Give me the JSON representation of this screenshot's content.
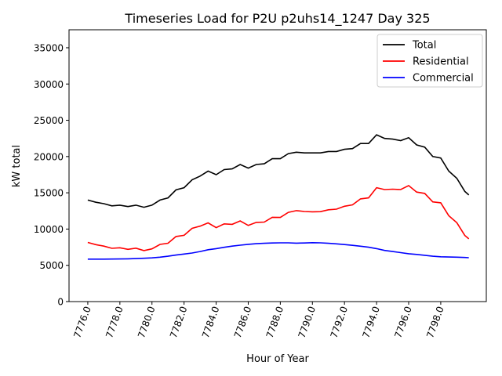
{
  "chart_data": {
    "type": "line",
    "title": "Timeseries Load for P2U p2uhs14_1247  Day 325",
    "xlabel": "Hour of Year",
    "ylabel": "kW total",
    "xlim": [
      7774.83,
      7800.84
    ],
    "ylim": [
      0,
      37480
    ],
    "xticks": [
      7776,
      7778,
      7780,
      7782,
      7784,
      7786,
      7788,
      7790,
      7792,
      7794,
      7796,
      7798
    ],
    "xtick_labels": [
      "7776.0",
      "7778.0",
      "7780.0",
      "7782.0",
      "7784.0",
      "7786.0",
      "7788.0",
      "7790.0",
      "7792.0",
      "7794.0",
      "7796.0",
      "7798.0"
    ],
    "yticks": [
      0,
      5000,
      10000,
      15000,
      20000,
      25000,
      30000,
      35000
    ],
    "ytick_labels": [
      "0",
      "5000",
      "10000",
      "15000",
      "20000",
      "25000",
      "30000",
      "35000"
    ],
    "legend_position": "top-right",
    "x": [
      7776,
      7776.5,
      7777,
      7777.5,
      7778,
      7778.5,
      7779,
      7779.5,
      7780,
      7780.5,
      7781,
      7781.5,
      7782,
      7782.5,
      7783,
      7783.5,
      7784,
      7784.5,
      7785,
      7785.5,
      7786,
      7786.5,
      7787,
      7787.5,
      7788,
      7788.5,
      7789,
      7789.5,
      7790,
      7790.5,
      7791,
      7791.5,
      7792,
      7792.5,
      7793,
      7793.5,
      7794,
      7794.5,
      7795,
      7795.5,
      7796,
      7796.5,
      7797,
      7797.5,
      7798,
      7798.5,
      7799,
      7799.5,
      7799.75
    ],
    "series": [
      {
        "name": "Total",
        "color": "#000000",
        "values": [
          14000,
          13700,
          13500,
          13200,
          13300,
          13100,
          13300,
          13000,
          13300,
          14000,
          14300,
          15400,
          15700,
          16800,
          17300,
          18000,
          17500,
          18200,
          18300,
          18900,
          18400,
          18900,
          19000,
          19700,
          19700,
          20400,
          20600,
          20500,
          20500,
          20500,
          20700,
          20700,
          21000,
          21100,
          21800,
          21800,
          23000,
          22500,
          22400,
          22200,
          22600,
          21600,
          21300,
          20000,
          19800,
          18000,
          17000,
          15200,
          14700
        ]
      },
      {
        "name": "Residential",
        "color": "#ff0000",
        "values": [
          8150,
          7850,
          7650,
          7340,
          7420,
          7200,
          7370,
          7030,
          7270,
          7880,
          8050,
          8980,
          9140,
          10100,
          10400,
          10850,
          10200,
          10720,
          10650,
          11120,
          10500,
          10920,
          10960,
          11620,
          11600,
          12300,
          12540,
          12420,
          12380,
          12400,
          12660,
          12740,
          13140,
          13340,
          14160,
          14300,
          15700,
          15450,
          15500,
          15450,
          16000,
          15100,
          14920,
          13750,
          13620,
          11850,
          10880,
          9120,
          8650
        ]
      },
      {
        "name": "Commercial",
        "color": "#0000ff",
        "values": [
          5850,
          5850,
          5850,
          5860,
          5880,
          5900,
          5930,
          5970,
          6030,
          6120,
          6250,
          6420,
          6560,
          6700,
          6900,
          7150,
          7300,
          7480,
          7650,
          7780,
          7900,
          7980,
          8040,
          8080,
          8100,
          8100,
          8060,
          8080,
          8120,
          8100,
          8040,
          7960,
          7860,
          7760,
          7640,
          7500,
          7300,
          7050,
          6900,
          6750,
          6600,
          6500,
          6380,
          6250,
          6180,
          6150,
          6120,
          6080,
          6050
        ]
      }
    ]
  }
}
